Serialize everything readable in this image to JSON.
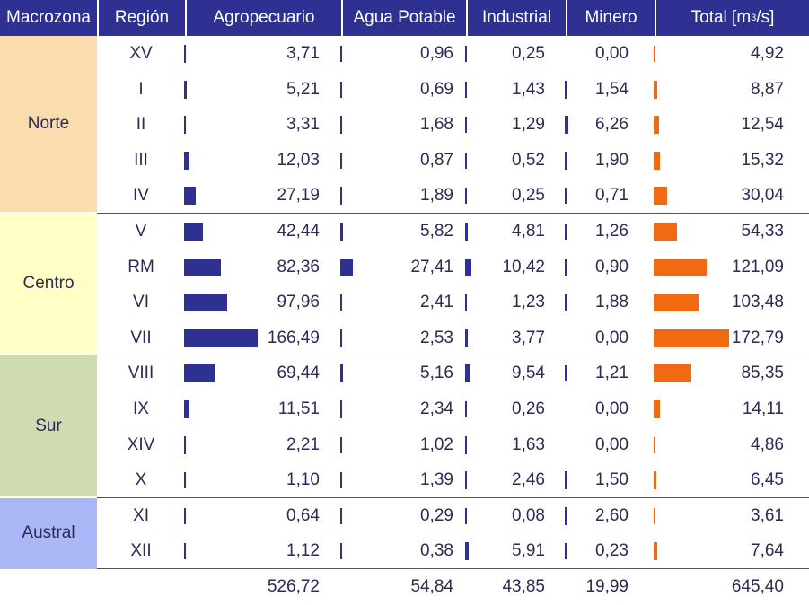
{
  "headers": {
    "macrozona": "Macrozona",
    "region": "Región",
    "agro": "Agropecuario",
    "agua": "Agua Potable",
    "industrial": "Industrial",
    "minero": "Minero",
    "total_prefix": "Total [m",
    "total_sup": "3",
    "total_suffix": "/s]"
  },
  "macrozonas": [
    {
      "name": "Norte",
      "color": "#fadcae"
    },
    {
      "name": "Centro",
      "color": "#ffffc6"
    },
    {
      "name": "Sur",
      "color": "#cfdcb0"
    },
    {
      "name": "Austral",
      "color": "#aab8f8"
    }
  ],
  "colors": {
    "header": "#2e3192",
    "bar_blue": "#2e3192",
    "bar_orange": "#f06a13"
  },
  "chart_data": {
    "type": "table",
    "columns": [
      "Agropecuario",
      "Agua Potable",
      "Industrial",
      "Minero",
      "Total [m3/s]"
    ],
    "rows": [
      {
        "macrozona": "Norte",
        "region": "XV",
        "agro": "3,71",
        "agua": "0,96",
        "industrial": "0,25",
        "minero": "0,00",
        "total": "4,92",
        "v": [
          3.71,
          0.96,
          0.25,
          0.0,
          4.92
        ]
      },
      {
        "macrozona": "Norte",
        "region": "I",
        "agro": "5,21",
        "agua": "0,69",
        "industrial": "1,43",
        "minero": "1,54",
        "total": "8,87",
        "v": [
          5.21,
          0.69,
          1.43,
          1.54,
          8.87
        ]
      },
      {
        "macrozona": "Norte",
        "region": "II",
        "agro": "3,31",
        "agua": "1,68",
        "industrial": "1,29",
        "minero": "6,26",
        "total": "12,54",
        "v": [
          3.31,
          1.68,
          1.29,
          6.26,
          12.54
        ]
      },
      {
        "macrozona": "Norte",
        "region": "III",
        "agro": "12,03",
        "agua": "0,87",
        "industrial": "0,52",
        "minero": "1,90",
        "total": "15,32",
        "v": [
          12.03,
          0.87,
          0.52,
          1.9,
          15.32
        ]
      },
      {
        "macrozona": "Norte",
        "region": "IV",
        "agro": "27,19",
        "agua": "1,89",
        "industrial": "0,25",
        "minero": "0,71",
        "total": "30,04",
        "v": [
          27.19,
          1.89,
          0.25,
          0.71,
          30.04
        ]
      },
      {
        "macrozona": "Centro",
        "region": "V",
        "agro": "42,44",
        "agua": "5,82",
        "industrial": "4,81",
        "minero": "1,26",
        "total": "54,33",
        "v": [
          42.44,
          5.82,
          4.81,
          1.26,
          54.33
        ]
      },
      {
        "macrozona": "Centro",
        "region": "RM",
        "agro": "82,36",
        "agua": "27,41",
        "industrial": "10,42",
        "minero": "0,90",
        "total": "121,09",
        "v": [
          82.36,
          27.41,
          10.42,
          0.9,
          121.09
        ]
      },
      {
        "macrozona": "Centro",
        "region": "VI",
        "agro": "97,96",
        "agua": "2,41",
        "industrial": "1,23",
        "minero": "1,88",
        "total": "103,48",
        "v": [
          97.96,
          2.41,
          1.23,
          1.88,
          103.48
        ]
      },
      {
        "macrozona": "Centro",
        "region": "VII",
        "agro": "166,49",
        "agua": "2,53",
        "industrial": "3,77",
        "minero": "0,00",
        "total": "172,79",
        "v": [
          166.49,
          2.53,
          3.77,
          0.0,
          172.79
        ]
      },
      {
        "macrozona": "Sur",
        "region": "VIII",
        "agro": "69,44",
        "agua": "5,16",
        "industrial": "9,54",
        "minero": "1,21",
        "total": "85,35",
        "v": [
          69.44,
          5.16,
          9.54,
          1.21,
          85.35
        ]
      },
      {
        "macrozona": "Sur",
        "region": "IX",
        "agro": "11,51",
        "agua": "2,34",
        "industrial": "0,26",
        "minero": "0,00",
        "total": "14,11",
        "v": [
          11.51,
          2.34,
          0.26,
          0.0,
          14.11
        ]
      },
      {
        "macrozona": "Sur",
        "region": "XIV",
        "agro": "2,21",
        "agua": "1,02",
        "industrial": "1,63",
        "minero": "0,00",
        "total": "4,86",
        "v": [
          2.21,
          1.02,
          1.63,
          0.0,
          4.86
        ]
      },
      {
        "macrozona": "Sur",
        "region": "X",
        "agro": "1,10",
        "agua": "1,39",
        "industrial": "2,46",
        "minero": "1,50",
        "total": "6,45",
        "v": [
          1.1,
          1.39,
          2.46,
          1.5,
          6.45
        ]
      },
      {
        "macrozona": "Austral",
        "region": "XI",
        "agro": "0,64",
        "agua": "0,29",
        "industrial": "0,08",
        "minero": "2,60",
        "total": "3,61",
        "v": [
          0.64,
          0.29,
          0.08,
          2.6,
          3.61
        ]
      },
      {
        "macrozona": "Austral",
        "region": "XII",
        "agro": "1,12",
        "agua": "0,38",
        "industrial": "5,91",
        "minero": "0,23",
        "total": "7,64",
        "v": [
          1.12,
          0.38,
          5.91,
          0.23,
          7.64
        ]
      }
    ],
    "totals": {
      "agro": "526,72",
      "agua": "54,84",
      "industrial": "43,85",
      "minero": "19,99",
      "total": "645,40"
    }
  }
}
